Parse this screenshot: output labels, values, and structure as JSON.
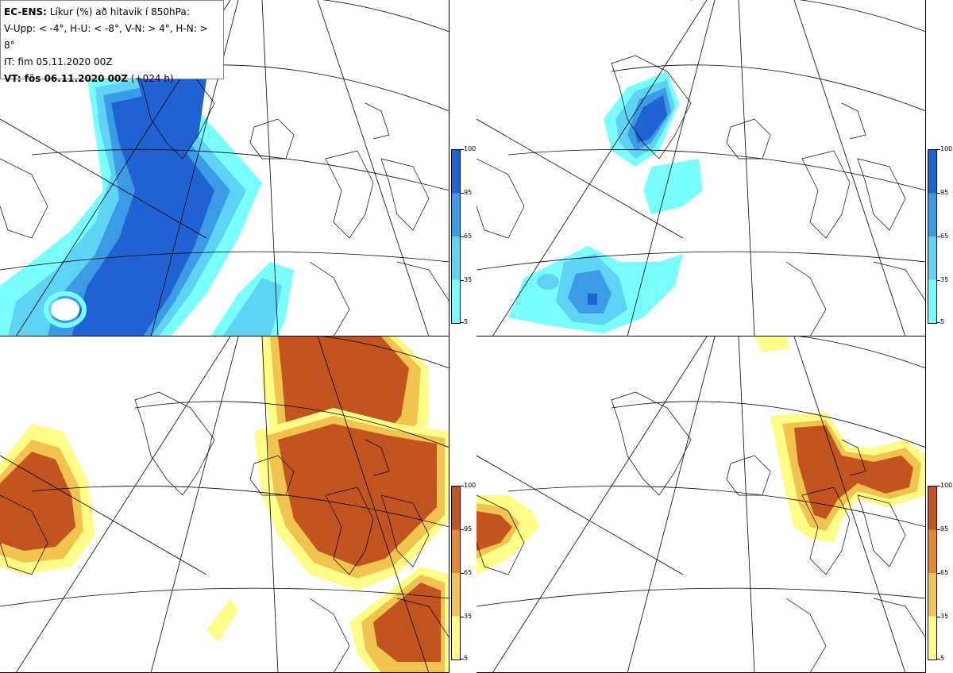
{
  "legend": {
    "line1_bold": "EC-ENS:",
    "line1_rest": " Líkur (%) að hitavik í 850hPa:",
    "line2": "V-Upp: < -4°, H-U: < -8°, V-N: > 4°, H-N: > 8°",
    "line3": "IT: fim 05.11.2020 00Z",
    "line4_bold": "VT: fös 06.11.2020 00Z",
    "line4_rest": " (+024 h)"
  },
  "panels": {
    "top_left": {
      "label": "V-Upp",
      "scale": "blue"
    },
    "top_right": {
      "label": "H-U",
      "scale": "blue"
    },
    "bottom_left": {
      "label": "V-N",
      "scale": "orange"
    },
    "bottom_right": {
      "label": "H-N",
      "scale": "orange"
    }
  },
  "colorbar": {
    "ticks": [
      "100",
      "95",
      "65",
      "35",
      "5"
    ],
    "blue_colors": [
      "#79ffff",
      "#5fd3f3",
      "#3b9be6",
      "#1f63d2"
    ],
    "orange_colors": [
      "#fffd88",
      "#f0c44e",
      "#e08a34",
      "#c25420"
    ]
  }
}
